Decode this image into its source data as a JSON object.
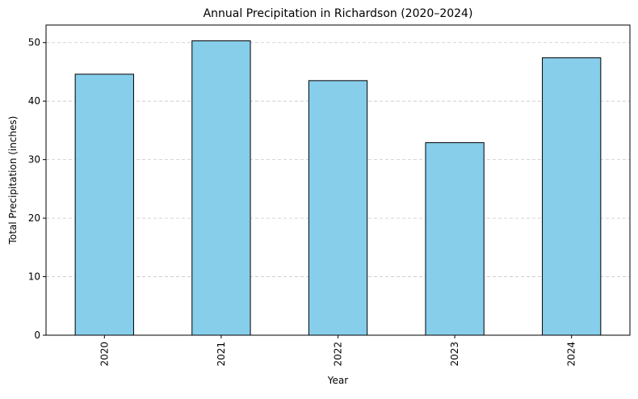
{
  "chart_data": {
    "type": "bar",
    "title": "Annual Precipitation in Richardson (2020–2024)",
    "xlabel": "Year",
    "ylabel": "Total Precipitation (inches)",
    "categories": [
      "2020",
      "2021",
      "2022",
      "2023",
      "2024"
    ],
    "values": [
      44.6,
      50.3,
      43.5,
      32.9,
      47.4
    ],
    "ylim": [
      0,
      53
    ],
    "yticks": [
      0,
      10,
      20,
      30,
      40,
      50
    ],
    "grid": "y-dashed",
    "bar_color": "#87CEEB",
    "edge_color": "#000000",
    "grid_color": "#c8c8c8"
  }
}
